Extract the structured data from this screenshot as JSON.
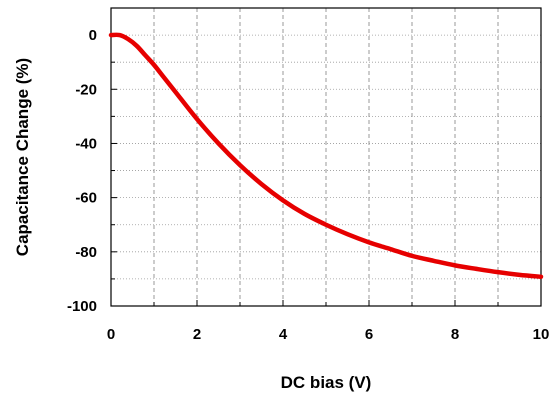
{
  "chart_data": {
    "type": "line",
    "title": "",
    "xlabel": "DC bias (V)",
    "ylabel": "Capacitance Change (%)",
    "xlim": [
      0,
      10
    ],
    "ylim": [
      -100,
      10
    ],
    "x_ticks": [
      0,
      2,
      4,
      6,
      8,
      10
    ],
    "y_ticks": [
      0,
      -20,
      -40,
      -60,
      -80,
      -100
    ],
    "grid": "dashed",
    "line_color": "#e60000",
    "series": [
      {
        "name": "",
        "x": [
          0,
          0.2,
          0.4,
          0.6,
          0.8,
          1.0,
          1.2,
          1.5,
          2.0,
          2.5,
          3.0,
          3.5,
          4.0,
          4.5,
          5.0,
          5.5,
          6.0,
          6.5,
          7.0,
          7.5,
          8.0,
          8.5,
          9.0,
          9.5,
          10.0
        ],
        "y": [
          0,
          0,
          -1.5,
          -4,
          -7.5,
          -11,
          -15,
          -21,
          -31,
          -40,
          -48,
          -55,
          -61,
          -66,
          -70,
          -73.5,
          -76.5,
          -79,
          -81.5,
          -83.3,
          -85,
          -86.3,
          -87.5,
          -88.5,
          -89.2
        ]
      }
    ]
  }
}
